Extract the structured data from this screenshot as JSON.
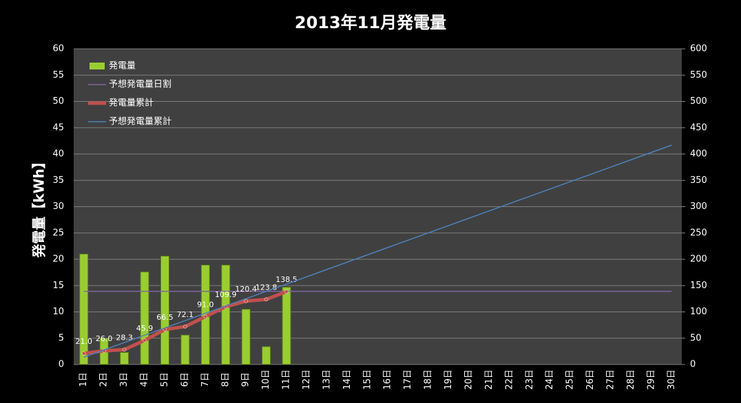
{
  "chart_data": {
    "type": "bar",
    "title": "2013年11月発電量",
    "y_label": "発電量【kWh】",
    "categories": [
      "1日",
      "2日",
      "3日",
      "4日",
      "5日",
      "6日",
      "7日",
      "8日",
      "9日",
      "10日",
      "11日",
      "12日",
      "13日",
      "14日",
      "15日",
      "16日",
      "17日",
      "18日",
      "19日",
      "20日",
      "21日",
      "22日",
      "23日",
      "24日",
      "25日",
      "26日",
      "27日",
      "28日",
      "29日",
      "30日"
    ],
    "series": [
      {
        "name": "発電量",
        "type": "bar",
        "color": "#9acd32",
        "axis": "y",
        "values": [
          21.0,
          5.0,
          2.3,
          17.6,
          20.6,
          5.6,
          18.9,
          18.9,
          10.5,
          3.4,
          14.7,
          null,
          null,
          null,
          null,
          null,
          null,
          null,
          null,
          null,
          null,
          null,
          null,
          null,
          null,
          null,
          null,
          null,
          null,
          null
        ]
      },
      {
        "name": "予想発電量日割",
        "type": "line",
        "color": "#8064a2",
        "axis": "y",
        "values": [
          13.9,
          13.9,
          13.9,
          13.9,
          13.9,
          13.9,
          13.9,
          13.9,
          13.9,
          13.9,
          13.9,
          13.9,
          13.9,
          13.9,
          13.9,
          13.9,
          13.9,
          13.9,
          13.9,
          13.9,
          13.9,
          13.9,
          13.9,
          13.9,
          13.9,
          13.9,
          13.9,
          13.9,
          13.9,
          13.9
        ]
      },
      {
        "name": "発電量累計",
        "type": "line",
        "color": "#c0504d",
        "axis": "y2",
        "values": [
          21.0,
          26.0,
          28.3,
          45.9,
          66.5,
          72.1,
          91.0,
          109.9,
          120.4,
          123.8,
          138.5,
          null,
          null,
          null,
          null,
          null,
          null,
          null,
          null,
          null,
          null,
          null,
          null,
          null,
          null,
          null,
          null,
          null,
          null,
          null
        ],
        "value_labels": [
          "21.0",
          "26.0",
          "28.3",
          "45.9",
          "66.5",
          "72.1",
          "91.0",
          "109.9",
          "120.4",
          "123.8",
          "138.5",
          null,
          null,
          null,
          null,
          null,
          null,
          null,
          null,
          null,
          null,
          null,
          null,
          null,
          null,
          null,
          null,
          null,
          null,
          null
        ]
      },
      {
        "name": "予想発電量累計",
        "type": "line",
        "color": "#4f81bd",
        "axis": "y2",
        "values": [
          13.9,
          27.8,
          41.7,
          55.6,
          69.5,
          83.4,
          97.3,
          111.2,
          125.1,
          139.0,
          152.9,
          166.8,
          180.7,
          194.6,
          208.5,
          222.4,
          236.3,
          250.2,
          264.1,
          278.0,
          291.9,
          305.8,
          319.7,
          333.6,
          347.5,
          361.4,
          375.3,
          389.2,
          403.1,
          417.0
        ]
      }
    ],
    "ylim": [
      0,
      60
    ],
    "yticks": [
      0,
      5,
      10,
      15,
      20,
      25,
      30,
      35,
      40,
      45,
      50,
      55,
      60
    ],
    "y2lim": [
      0,
      600
    ],
    "y2ticks": [
      0,
      50,
      100,
      150,
      200,
      250,
      300,
      350,
      400,
      450,
      500,
      550,
      600
    ],
    "grid": true,
    "legend": "upper left"
  }
}
